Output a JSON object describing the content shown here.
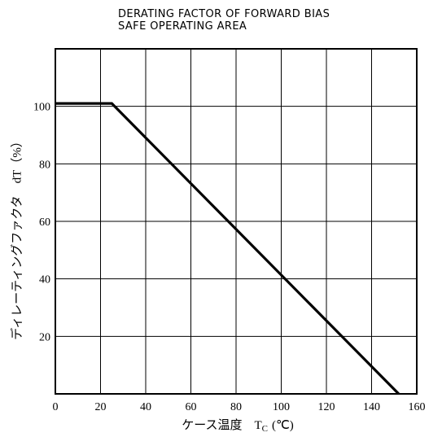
{
  "chart_data": {
    "type": "line",
    "title_lines": [
      "DERATING FACTOR OF FORWARD BIAS",
      "SAFE OPERATING AREA"
    ],
    "xlabel": "ケース温度　T",
    "xlabel_sub": "C",
    "xlabel_unit": "(℃)",
    "ylabel": "ディレーティングファクタ　dT（%）",
    "xlim": [
      0,
      160
    ],
    "ylim": [
      0,
      120
    ],
    "x_ticks": [
      0,
      20,
      40,
      60,
      80,
      100,
      120,
      140,
      160
    ],
    "y_ticks": [
      20,
      40,
      60,
      80,
      100
    ],
    "grid": true,
    "series": [
      {
        "color": "#000000",
        "x": [
          0,
          25,
          152
        ],
        "y": [
          101,
          101,
          0
        ]
      }
    ]
  }
}
